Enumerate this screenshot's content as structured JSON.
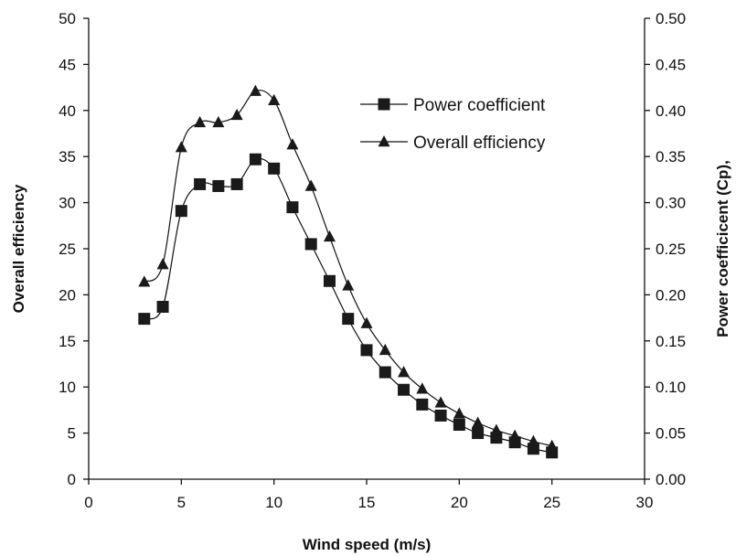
{
  "chart_data": {
    "type": "line",
    "xlabel": "Wind speed (m/s)",
    "ylabel_left": "Overall efficiency",
    "ylabel_right": "Power coefficicent (Cp),",
    "xlim": [
      0,
      30
    ],
    "xticks": [
      0,
      5,
      10,
      15,
      20,
      25,
      30
    ],
    "ylim_left": [
      0,
      50
    ],
    "yticks_left": [
      0,
      5,
      10,
      15,
      20,
      25,
      30,
      35,
      40,
      45,
      50
    ],
    "ylim_right": [
      0,
      0.5
    ],
    "yticks_right": [
      "0.00",
      "0.05",
      "0.10",
      "0.15",
      "0.20",
      "0.25",
      "0.30",
      "0.35",
      "0.40",
      "0.45",
      "0.50"
    ],
    "grid": false,
    "legend_position": "top-right",
    "x": [
      3,
      4,
      5,
      6,
      7,
      8,
      9,
      10,
      11,
      12,
      13,
      14,
      15,
      16,
      17,
      18,
      19,
      20,
      21,
      22,
      23,
      24,
      25
    ],
    "series": [
      {
        "name": "Power coefficient",
        "marker": "square",
        "axis": "right",
        "values": [
          0.174,
          0.187,
          0.291,
          0.32,
          0.318,
          0.32,
          0.347,
          0.337,
          0.295,
          0.255,
          0.215,
          0.174,
          0.14,
          0.116,
          0.097,
          0.081,
          0.069,
          0.059,
          0.05,
          0.045,
          0.04,
          0.033,
          0.029
        ]
      },
      {
        "name": "Overall efficiency",
        "marker": "triangle",
        "axis": "left",
        "values": [
          21.4,
          23.3,
          36.0,
          38.7,
          38.7,
          39.5,
          42.1,
          41.1,
          36.3,
          31.8,
          26.3,
          21.0,
          16.9,
          14.0,
          11.6,
          9.8,
          8.3,
          7.1,
          6.1,
          5.3,
          4.7,
          4.1,
          3.6
        ]
      }
    ]
  }
}
